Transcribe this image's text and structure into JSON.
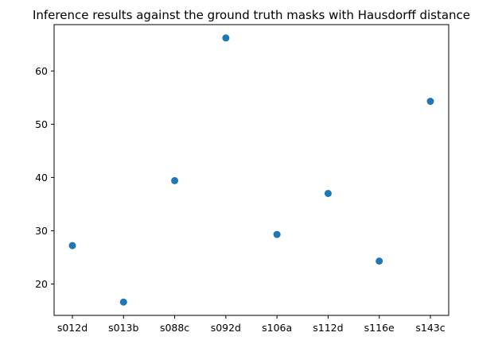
{
  "chart_data": {
    "type": "scatter",
    "title": "Inference results against the ground truth masks with Hausdorff distance",
    "xlabel": "",
    "ylabel": "",
    "categories": [
      "s012d",
      "s013b",
      "s088c",
      "s092d",
      "s106a",
      "s112d",
      "s116e",
      "s143c"
    ],
    "values": [
      27.2,
      16.6,
      39.4,
      66.2,
      29.3,
      37.0,
      24.3,
      54.3
    ],
    "ylim": [
      14.1,
      68.7
    ],
    "yticks": [
      20,
      30,
      40,
      50,
      60
    ],
    "ytick_labels": [
      "20",
      "30",
      "40",
      "50",
      "60"
    ],
    "point_color": "#1f77b4",
    "grid": false,
    "legend": "none"
  }
}
